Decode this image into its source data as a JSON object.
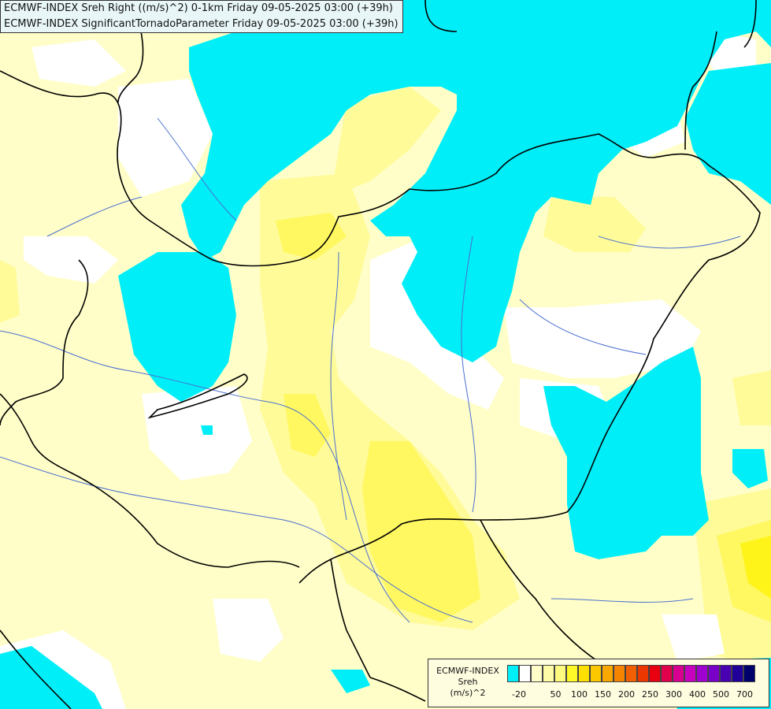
{
  "title": {
    "line1": "ECMWF-INDEX Sreh Right ((m/s)^2) 0-1km Friday 09-05-2025 03:00 (+39h)",
    "line2": "ECMWF-INDEX SignificantTornadoParameter Friday 09-05-2025 03:00 (+39h)"
  },
  "legend": {
    "source": "ECMWF-INDEX",
    "variable": "Sreh",
    "unit": "(m/s)^2",
    "colors": [
      "#00eef8",
      "#ffffff",
      "#fffec8",
      "#fffca8",
      "#fffb80",
      "#fff828",
      "#fde000",
      "#fbc800",
      "#f8a800",
      "#f58400",
      "#f06000",
      "#ec3800",
      "#e80010",
      "#e0004c",
      "#d80090",
      "#c800c0",
      "#a000d0",
      "#7800c8",
      "#4800b0",
      "#200098",
      "#00006c"
    ],
    "ticks": [
      "-20",
      "50",
      "100",
      "150",
      "200",
      "250",
      "300",
      "400",
      "500",
      "700"
    ]
  },
  "map_colors": {
    "cyan": "#00eef8",
    "white": "#ffffff",
    "pale_yellow": "#fffec8",
    "light_yellow": "#fffb98",
    "yellow": "#fff860",
    "deep_yellow": "#fff41a",
    "orange_yellow": "#fde000",
    "border": "#000000",
    "river": "#4a6fd0"
  }
}
